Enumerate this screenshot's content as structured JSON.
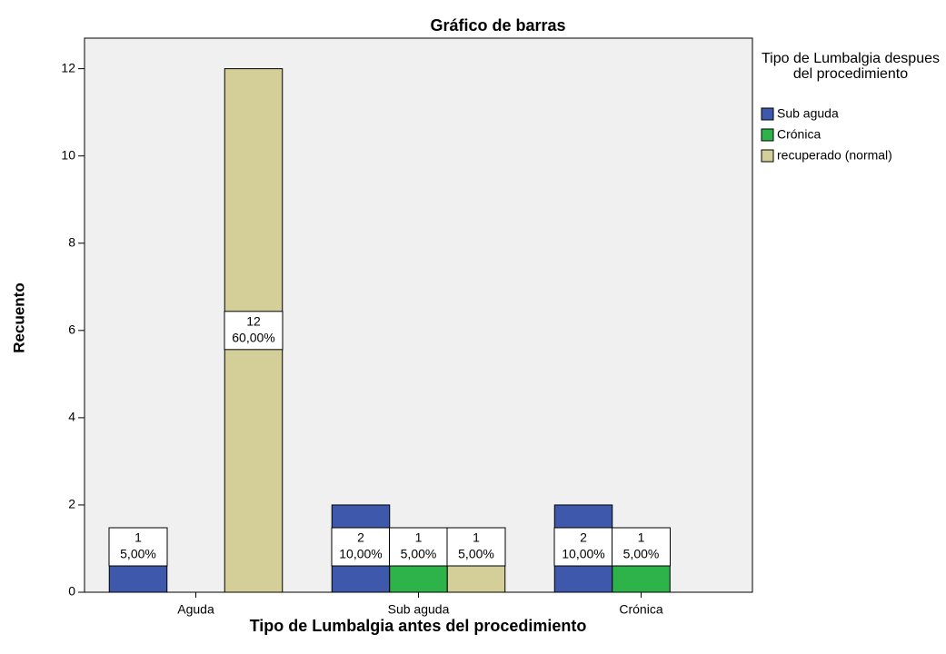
{
  "chart_data": {
    "type": "bar",
    "title": "Gráfico de barras",
    "x_label": "Tipo de Lumbalgia antes del procedimiento",
    "y_label": "Recuento",
    "legend_title": "Tipo de Lumbalgia despues del procedimiento",
    "categories": [
      "Aguda",
      "Sub aguda",
      "Crónica"
    ],
    "series": [
      {
        "name": "Sub aguda",
        "color": "#3e58ac",
        "values": [
          1,
          2,
          2
        ],
        "value_labels": [
          [
            "1",
            "5,00%"
          ],
          [
            "2",
            "10,00%"
          ],
          [
            "2",
            "10,00%"
          ]
        ]
      },
      {
        "name": "Crónica",
        "color": "#2db34a",
        "values": [
          null,
          1,
          1
        ],
        "value_labels": [
          null,
          [
            "1",
            "5,00%"
          ],
          [
            "1",
            "5,00%"
          ]
        ]
      },
      {
        "name": "recuperado (normal)",
        "color": "#d4cf98",
        "values": [
          12,
          1,
          null
        ],
        "value_labels": [
          [
            "12",
            "60,00%"
          ],
          [
            "1",
            "5,00%"
          ],
          null
        ]
      }
    ],
    "ylim": [
      0,
      12.7
    ],
    "yticks": [
      0,
      2,
      4,
      6,
      8,
      10,
      12
    ]
  }
}
